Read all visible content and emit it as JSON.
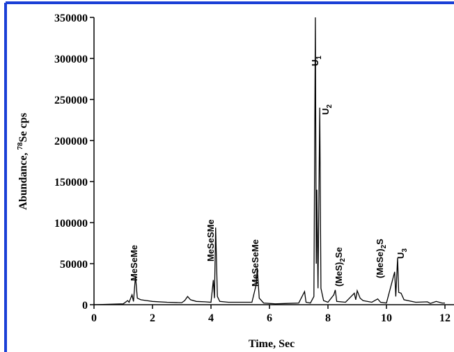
{
  "chart_data": {
    "type": "line",
    "xlabel": "Time, Sec",
    "ylabel": [
      "Abundance, ",
      "78",
      "Se cps"
    ],
    "x": [
      0,
      0.5,
      1.0,
      1.15,
      1.2,
      1.3,
      1.35,
      1.42,
      1.48,
      1.6,
      1.8,
      2.0,
      2.5,
      3.0,
      3.1,
      3.2,
      3.3,
      3.5,
      3.8,
      4.0,
      4.08,
      4.12,
      4.16,
      4.22,
      4.3,
      4.6,
      5.0,
      5.4,
      5.55,
      5.58,
      5.65,
      5.8,
      6.2,
      6.6,
      7.0,
      7.2,
      7.25,
      7.4,
      7.52,
      7.57,
      7.6,
      7.62,
      7.66,
      7.72,
      7.76,
      7.85,
      8.0,
      8.2,
      8.25,
      8.3,
      8.6,
      8.9,
      8.95,
      9.0,
      9.1,
      9.2,
      9.5,
      9.7,
      9.8,
      10.0,
      10.28,
      10.32,
      10.38,
      10.42,
      10.5,
      10.6,
      11.0,
      11.4,
      11.5,
      11.7,
      11.9,
      12.0
    ],
    "series": [
      {
        "color": "#000000",
        "values": [
          0,
          500,
          1000,
          5000,
          3000,
          12000,
          4000,
          35000,
          8000,
          6000,
          5000,
          4000,
          3000,
          2500,
          5000,
          10000,
          6000,
          4000,
          3500,
          3000,
          30000,
          8000,
          94000,
          10000,
          4000,
          3000,
          3000,
          3000,
          25000,
          45000,
          8000,
          2000,
          1000,
          1500,
          2000,
          16000,
          3000,
          2000,
          10000,
          350000,
          50000,
          140000,
          20000,
          240000,
          20000,
          5000,
          3000,
          12000,
          18000,
          4000,
          3000,
          14000,
          6000,
          17000,
          8000,
          5000,
          3000,
          7000,
          3000,
          2000,
          40000,
          10000,
          57000,
          15000,
          14000,
          6000,
          3000,
          3500,
          1500,
          4000,
          2000,
          2000
        ]
      }
    ],
    "xlim": [
      0,
      12
    ],
    "xticks": [
      0,
      2,
      4,
      6,
      8,
      10,
      12
    ],
    "ylim": [
      0,
      350000
    ],
    "yticks": [
      0,
      50000,
      100000,
      150000,
      200000,
      250000,
      300000,
      350000
    ],
    "annotations": [
      [
        "MeSeMe"
      ],
      [
        "MeSeSMe"
      ],
      [
        "MeSeSeMe"
      ],
      [
        "U",
        "1"
      ],
      [
        "U",
        "2"
      ],
      [
        "(MeS)",
        "2",
        "Se"
      ],
      [
        "(MeSe)",
        "2",
        "S"
      ],
      [
        "U",
        "3"
      ]
    ]
  }
}
